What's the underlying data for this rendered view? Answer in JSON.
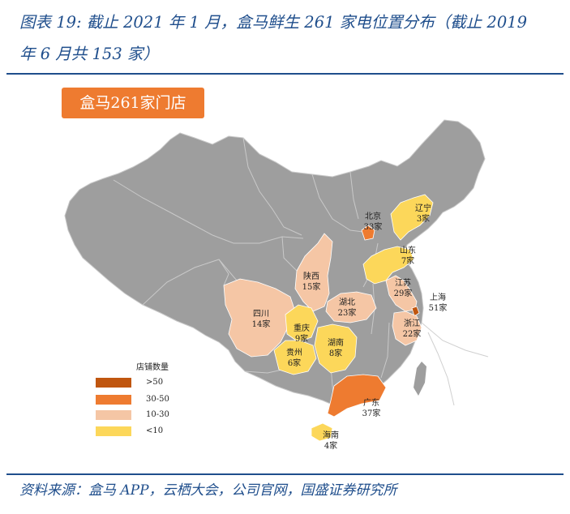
{
  "title": {
    "line1": "图表 19:  截止 2021 年 1 月，盒马鲜生 261 家电位置分布（截止 2019",
    "line2": "年 6 月共 153 家）"
  },
  "badge": "盒马261家门店",
  "legend": {
    "title": "店铺数量",
    "items": [
      {
        "label": ">50",
        "color": "#c0560f"
      },
      {
        "label": "30-50",
        "color": "#ee7b30"
      },
      {
        "label": "10-30",
        "color": "#f5c6a5"
      },
      {
        "label": "<10",
        "color": "#fcd75a"
      }
    ]
  },
  "colors": {
    "land": "#9e9e9e",
    "border": "#c9c9c9",
    "sea_line": "#d0d0d0"
  },
  "regions": [
    {
      "id": "beijing",
      "name": "北京",
      "count": "33家",
      "stores": 33,
      "color": "#ee7b30"
    },
    {
      "id": "liaoning",
      "name": "辽宁",
      "count": "3家",
      "stores": 3,
      "color": "#fcd75a"
    },
    {
      "id": "shandong",
      "name": "山东",
      "count": "7家",
      "stores": 7,
      "color": "#fcd75a"
    },
    {
      "id": "jiangsu",
      "name": "江苏",
      "count": "29家",
      "stores": 29,
      "color": "#f5c6a5"
    },
    {
      "id": "shanghai",
      "name": "上海",
      "count": "51家",
      "stores": 51,
      "color": "#c0560f"
    },
    {
      "id": "zhejiang",
      "name": "浙江",
      "count": "22家",
      "stores": 22,
      "color": "#f5c6a5"
    },
    {
      "id": "shaanxi",
      "name": "陕西",
      "count": "15家",
      "stores": 15,
      "color": "#f5c6a5"
    },
    {
      "id": "hubei",
      "name": "湖北",
      "count": "23家",
      "stores": 23,
      "color": "#f5c6a5"
    },
    {
      "id": "sichuan",
      "name": "四川",
      "count": "14家",
      "stores": 14,
      "color": "#f5c6a5"
    },
    {
      "id": "chongqing",
      "name": "重庆",
      "count": "9家",
      "stores": 9,
      "color": "#fcd75a"
    },
    {
      "id": "guizhou",
      "name": "贵州",
      "count": "6家",
      "stores": 6,
      "color": "#fcd75a"
    },
    {
      "id": "hunan",
      "name": "湖南",
      "count": "8家",
      "stores": 8,
      "color": "#fcd75a"
    },
    {
      "id": "guangdong",
      "name": "广东",
      "count": "37家",
      "stores": 37,
      "color": "#ee7b30"
    },
    {
      "id": "hainan",
      "name": "海南",
      "count": "4家",
      "stores": 4,
      "color": "#fcd75a"
    }
  ],
  "source": "资料来源：盒马 APP，云栖大会，公司官网，国盛证券研究所"
}
